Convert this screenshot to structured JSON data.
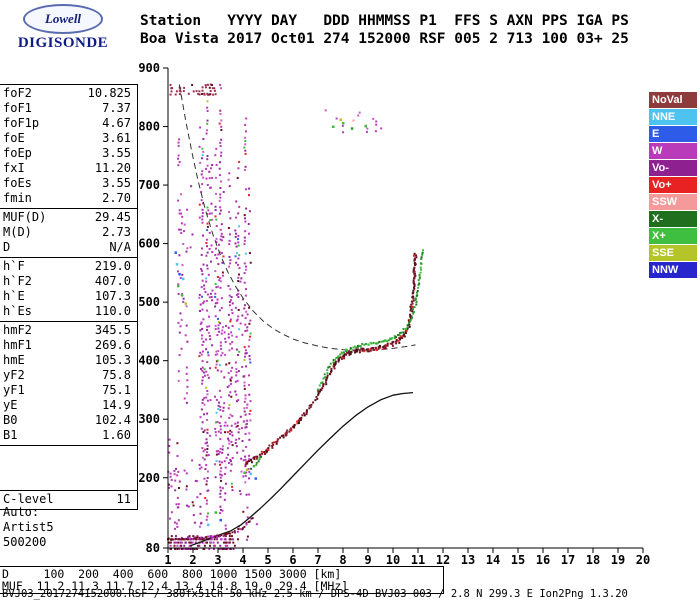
{
  "logo": {
    "top": "Lowell",
    "bottom": "DIGISONDE"
  },
  "header": {
    "line1": "Station   YYYY DAY   DDD HHMMSS P1  FFS S AXN PPS IGA PS",
    "line2": "Boa Vista 2017 Oct01 274 152000 RSF 005 2 713 100 03+ 25"
  },
  "params": {
    "groups": [
      [
        {
          "label": "foF2",
          "value": "10.825"
        },
        {
          "label": "foF1",
          "value": "7.37"
        },
        {
          "label": "foF1p",
          "value": "4.67"
        },
        {
          "label": "foE",
          "value": "3.61"
        },
        {
          "label": "foEp",
          "value": "3.55"
        },
        {
          "label": "fxI",
          "value": "11.20"
        },
        {
          "label": "foEs",
          "value": "3.55"
        },
        {
          "label": "fmin",
          "value": "2.70"
        }
      ],
      [
        {
          "label": "MUF(D)",
          "value": "29.45"
        },
        {
          "label": "M(D)",
          "value": "2.73"
        },
        {
          "label": "D",
          "value": "N/A"
        }
      ],
      [
        {
          "label": "h`F",
          "value": "219.0"
        },
        {
          "label": "h`F2",
          "value": "407.0"
        },
        {
          "label": "h`E",
          "value": "107.3"
        },
        {
          "label": "h`Es",
          "value": "110.0"
        }
      ],
      [
        {
          "label": "hmF2",
          "value": "345.5"
        },
        {
          "label": "hmF1",
          "value": "269.6"
        },
        {
          "label": "hmE",
          "value": "105.3"
        },
        {
          "label": "yF2",
          "value": "75.8"
        },
        {
          "label": "yF1",
          "value": "75.1"
        },
        {
          "label": "yE",
          "value": "14.9"
        },
        {
          "label": "B0",
          "value": "102.4"
        },
        {
          "label": "B1",
          "value": "1.60"
        }
      ],
      [
        {
          "label": "C-level",
          "value": "11"
        }
      ]
    ],
    "auto_lines": [
      "Auto:",
      "Artist5",
      "500200"
    ]
  },
  "legend": {
    "items": [
      {
        "label": "NoVal",
        "color": "#8E3B3B"
      },
      {
        "label": "NNE",
        "color": "#4FC3F0"
      },
      {
        "label": "E",
        "color": "#2E5BE8"
      },
      {
        "label": "W",
        "color": "#B93BB9"
      },
      {
        "label": "Vo-",
        "color": "#8E2090"
      },
      {
        "label": "Vo+",
        "color": "#E82222"
      },
      {
        "label": "SSW",
        "color": "#F59A9A"
      },
      {
        "label": "X-",
        "color": "#1F6F1F"
      },
      {
        "label": "X+",
        "color": "#3FBF3F"
      },
      {
        "label": "SSE",
        "color": "#B5C428"
      },
      {
        "label": "NNW",
        "color": "#2626CC"
      }
    ]
  },
  "bottom_table": {
    "rows": [
      [
        "D",
        "100",
        "200",
        "400",
        "600",
        "800",
        "1000",
        "1500",
        "3000",
        "[km]"
      ],
      [
        "MUF",
        "11.2",
        "11.3",
        "11.7",
        "12.4",
        "13.4",
        "14.8",
        "19.0",
        "29.4",
        "[MHz]"
      ]
    ]
  },
  "footer": {
    "text": "BVJ03_2017274152000.RSF / 380fx51Ch 50 kHz 2.5 km / DPS-4D BVJ03 003 / 2.8 N 299.3 E Ion2Png 1.3.20"
  },
  "chart_data": {
    "type": "scatter",
    "title": "Digisonde ionogram, Boa Vista 2017 Oct01 274 152000",
    "x_axis": {
      "min": 1,
      "max": 20,
      "unit": "MHz",
      "ticks": [
        1,
        2,
        3,
        4,
        5,
        6,
        7,
        8,
        9,
        10,
        11,
        12,
        13,
        14,
        15,
        16,
        17,
        18,
        19,
        20
      ]
    },
    "y_axis": {
      "min": 80,
      "max": 900,
      "unit": "km",
      "ticks": [
        900,
        800,
        700,
        600,
        500,
        400,
        300,
        200,
        80
      ]
    },
    "series": [
      {
        "name": "o-mode-trace",
        "type": "dots",
        "thick": true,
        "colors": [
          [
            "#6E1020",
            0.45
          ],
          [
            "#451016",
            0.25
          ],
          [
            "#8C1F2F",
            0.2
          ],
          [
            "#E82222",
            0.1
          ]
        ],
        "points": [
          [
            4.1,
            226
          ],
          [
            4.3,
            229
          ],
          [
            4.6,
            237
          ],
          [
            4.9,
            247
          ],
          [
            5.2,
            258
          ],
          [
            5.5,
            269
          ],
          [
            5.8,
            280
          ],
          [
            6.1,
            292
          ],
          [
            6.4,
            306
          ],
          [
            6.7,
            322
          ],
          [
            7.0,
            342
          ],
          [
            7.2,
            358
          ],
          [
            7.4,
            375
          ],
          [
            7.6,
            390
          ],
          [
            7.8,
            401
          ],
          [
            8.0,
            409
          ],
          [
            8.2,
            414
          ],
          [
            8.5,
            418
          ],
          [
            8.8,
            420
          ],
          [
            9.1,
            421
          ],
          [
            9.4,
            423
          ],
          [
            9.7,
            426
          ],
          [
            10.0,
            430
          ],
          [
            10.2,
            435
          ],
          [
            10.4,
            443
          ],
          [
            10.55,
            453
          ],
          [
            10.65,
            465
          ],
          [
            10.72,
            480
          ],
          [
            10.78,
            500
          ],
          [
            10.82,
            522
          ],
          [
            10.85,
            545
          ],
          [
            10.88,
            568
          ],
          [
            10.9,
            588
          ]
        ]
      },
      {
        "name": "x-mode-trace",
        "type": "dots",
        "thick": false,
        "colors": [
          [
            "#2F9A2F",
            0.5
          ],
          [
            "#3FBF3F",
            0.3
          ],
          [
            "#1F6F1F",
            0.2
          ]
        ],
        "points": [
          [
            7.0,
            352
          ],
          [
            7.2,
            368
          ],
          [
            7.4,
            384
          ],
          [
            7.6,
            397
          ],
          [
            7.8,
            407
          ],
          [
            8.0,
            414
          ],
          [
            8.2,
            419
          ],
          [
            8.5,
            424
          ],
          [
            8.8,
            427
          ],
          [
            9.1,
            429
          ],
          [
            9.4,
            431
          ],
          [
            9.7,
            434
          ],
          [
            10.0,
            438
          ],
          [
            10.2,
            443
          ],
          [
            10.4,
            450
          ],
          [
            10.6,
            461
          ],
          [
            10.75,
            475
          ],
          [
            10.9,
            495
          ],
          [
            11.0,
            520
          ],
          [
            11.08,
            548
          ],
          [
            11.14,
            572
          ],
          [
            11.18,
            592
          ]
        ]
      },
      {
        "name": "x-mode-trace-start",
        "type": "dots",
        "thick": false,
        "colors": [
          [
            "#2F9A2F",
            0.5
          ],
          [
            "#3FBF3F",
            0.3
          ],
          [
            "#1F6F1F",
            0.2
          ]
        ],
        "points": [
          [
            4.35,
            216
          ],
          [
            4.5,
            223
          ],
          [
            4.65,
            230
          ],
          [
            4.8,
            238
          ]
        ]
      },
      {
        "name": "es-trace",
        "type": "dots",
        "thick": false,
        "colors": [
          [
            "#6E1020",
            0.6
          ],
          [
            "#8E2090",
            0.2
          ],
          [
            "#B93BB9",
            0.2
          ]
        ],
        "points": [
          [
            1.0,
            95
          ],
          [
            1.5,
            96
          ],
          [
            2.0,
            97
          ],
          [
            2.5,
            98
          ],
          [
            3.0,
            100
          ],
          [
            3.4,
            103
          ],
          [
            3.7,
            108
          ],
          [
            4.0,
            115
          ],
          [
            4.2,
            124
          ],
          [
            4.4,
            135
          ]
        ]
      },
      {
        "name": "true-height-profile",
        "type": "line",
        "color": "#111111",
        "points": [
          [
            1.9,
            84
          ],
          [
            2.3,
            90
          ],
          [
            2.7,
            97
          ],
          [
            3.1,
            103
          ],
          [
            3.5,
            109
          ],
          [
            3.9,
            119
          ],
          [
            4.3,
            133
          ],
          [
            4.7,
            148
          ],
          [
            5.1,
            164
          ],
          [
            5.5,
            181
          ],
          [
            6.0,
            203
          ],
          [
            6.5,
            225
          ],
          [
            7.0,
            247
          ],
          [
            7.5,
            268
          ],
          [
            8.0,
            288
          ],
          [
            8.5,
            306
          ],
          [
            9.0,
            321
          ],
          [
            9.5,
            333
          ],
          [
            10.0,
            341
          ],
          [
            10.4,
            344
          ],
          [
            10.8,
            345.5
          ]
        ]
      },
      {
        "name": "muf-transmission-curve",
        "type": "dashed-line",
        "color": "#333333",
        "points": [
          [
            1.45,
            872
          ],
          [
            1.7,
            812
          ],
          [
            1.95,
            757
          ],
          [
            2.2,
            708
          ],
          [
            2.5,
            657
          ],
          [
            2.8,
            615
          ],
          [
            3.1,
            580
          ],
          [
            3.4,
            551
          ],
          [
            3.7,
            527
          ],
          [
            4.0,
            507
          ],
          [
            4.4,
            485
          ],
          [
            4.8,
            468
          ],
          [
            5.2,
            455
          ],
          [
            5.6,
            445
          ],
          [
            6.0,
            437
          ],
          [
            6.5,
            430
          ],
          [
            7.0,
            425
          ],
          [
            7.5,
            421
          ],
          [
            8.0,
            419
          ],
          [
            8.5,
            418
          ],
          [
            9.0,
            418
          ],
          [
            9.5,
            419
          ],
          [
            10.0,
            421
          ],
          [
            10.5,
            424
          ],
          [
            10.9,
            427
          ]
        ]
      }
    ],
    "spread_regions": [
      {
        "name": "spread-f-main",
        "f0": 2.25,
        "f1": 4.25,
        "h0": 85,
        "h1": 885,
        "step": 0.09,
        "fill": 0.3,
        "topCrop": 0.55,
        "botCrop": 0.2,
        "skip": 0.1,
        "colors": [
          [
            "#B93BB9",
            0.5
          ],
          [
            "#9A2AA0",
            0.25
          ],
          [
            "#C95BC9",
            0.1
          ],
          [
            "#E82222",
            0.04
          ],
          [
            "#6E1020",
            0.05
          ],
          [
            "#4FC3F0",
            0.02
          ],
          [
            "#3FBF3F",
            0.02
          ],
          [
            "#2E5BE8",
            0.01
          ],
          [
            "#B5C428",
            0.01
          ]
        ]
      },
      {
        "name": "spread-f-low-freq",
        "f0": 1.3,
        "f1": 2.2,
        "h0": 300,
        "h1": 880,
        "step": 0.1,
        "fill": 0.15,
        "topCrop": 0.7,
        "botCrop": 0.35,
        "skip": 0.25,
        "colors": [
          [
            "#B93BB9",
            0.6
          ],
          [
            "#9A2AA0",
            0.3
          ],
          [
            "#C95BC9",
            0.1
          ]
        ]
      },
      {
        "name": "bottom-noise-band",
        "f0": 1.0,
        "f1": 3.6,
        "h0": 80,
        "h1": 104,
        "step": 0.05,
        "fill": 0.5,
        "topCrop": 0.15,
        "botCrop": 0.0,
        "skip": 0.05,
        "colors": [
          [
            "#6E1020",
            0.45
          ],
          [
            "#B93BB9",
            0.3
          ],
          [
            "#8E2090",
            0.25
          ]
        ]
      },
      {
        "name": "es-spread",
        "f0": 3.6,
        "f1": 4.7,
        "h0": 96,
        "h1": 150,
        "step": 0.09,
        "fill": 0.12,
        "topCrop": 0.4,
        "botCrop": 0.1,
        "skip": 0.2,
        "colors": [
          [
            "#B93BB9",
            0.5
          ],
          [
            "#6E1020",
            0.3
          ],
          [
            "#8E2090",
            0.2
          ]
        ]
      },
      {
        "name": "second-hop-spread",
        "f0": 7.3,
        "f1": 9.5,
        "h0": 786,
        "h1": 840,
        "step": 0.08,
        "fill": 0.1,
        "topCrop": 0.35,
        "botCrop": 0.3,
        "skip": 0.25,
        "colors": [
          [
            "#B93BB9",
            0.5
          ],
          [
            "#C95BC9",
            0.2
          ],
          [
            "#8E2090",
            0.15
          ],
          [
            "#E82222",
            0.1
          ],
          [
            "#F59A9A",
            0.05
          ]
        ]
      },
      {
        "name": "spread-bottom-left",
        "f0": 1.0,
        "f1": 2.3,
        "h0": 104,
        "h1": 300,
        "step": 0.08,
        "fill": 0.13,
        "topCrop": 0.5,
        "botCrop": 0.2,
        "skip": 0.25,
        "colors": [
          [
            "#B93BB9",
            0.6
          ],
          [
            "#9A2AA0",
            0.3
          ],
          [
            "#6E1020",
            0.1
          ]
        ]
      },
      {
        "name": "top-left-band",
        "f0": 1.05,
        "f1": 2.85,
        "h0": 856,
        "h1": 874,
        "step": 0.06,
        "fill": 0.45,
        "topCrop": 0.1,
        "botCrop": 0.1,
        "skip": 0.15,
        "colors": [
          [
            "#A03050",
            0.7
          ],
          [
            "#6E1020",
            0.3
          ]
        ]
      }
    ],
    "misc_points": [
      [
        1.35,
        565,
        "#4FC3F0"
      ],
      [
        1.45,
        548,
        "#2E5BE8"
      ],
      [
        1.4,
        528,
        "#3FBF3F"
      ],
      [
        1.6,
        540,
        "#4FC3F0"
      ],
      [
        1.55,
        512,
        "#3FBF3F"
      ],
      [
        1.3,
        585,
        "#2E5BE8"
      ],
      [
        1.7,
        498,
        "#B5C428"
      ],
      [
        4.3,
        207,
        "#4FC3F0"
      ],
      [
        4.5,
        199,
        "#2E5BE8"
      ],
      [
        4.15,
        214,
        "#B5C428"
      ],
      [
        4.05,
        209,
        "#3FBF3F"
      ],
      [
        7.6,
        800,
        "#3FBF3F"
      ],
      [
        8.0,
        806,
        "#3FBF3F"
      ],
      [
        8.35,
        797,
        "#2F9A2F"
      ],
      [
        8.9,
        801,
        "#3FBF3F"
      ],
      [
        7.9,
        812,
        "#B5C428"
      ],
      [
        2.6,
        120,
        "#4FC3F0"
      ],
      [
        3.1,
        128,
        "#2E5BE8"
      ],
      [
        2.9,
        141,
        "#3FBF3F"
      ]
    ]
  }
}
